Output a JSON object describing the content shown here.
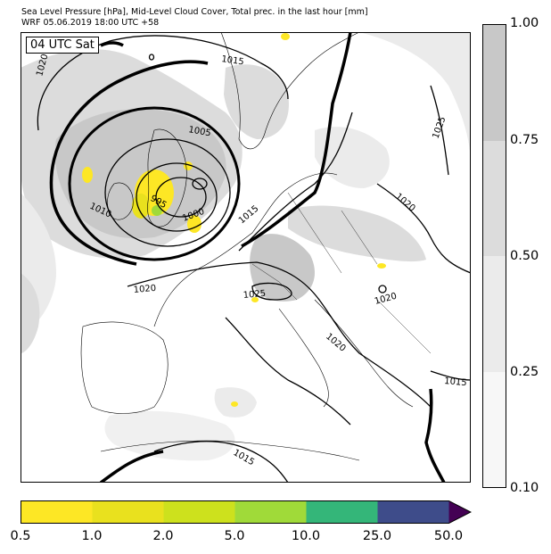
{
  "title": {
    "line1": "Sea Level Pressure [hPa], Mid-Level Cloud Cover, Total prec. in the last hour [mm]",
    "line2": "WRF 05.06.2019 18:00 UTC +58"
  },
  "map": {
    "time_label": "04 UTC Sat",
    "isobar_labels": [
      {
        "text": "1020",
        "angle": -75
      },
      {
        "text": "1015",
        "angle": 8
      },
      {
        "text": "1005",
        "angle": 10
      },
      {
        "text": "995",
        "angle": 30
      },
      {
        "text": "1000",
        "angle": -20
      },
      {
        "text": "1010",
        "angle": 25
      },
      {
        "text": "1015",
        "angle": -40
      },
      {
        "text": "1020",
        "angle": -5
      },
      {
        "text": "1025",
        "angle": -5
      },
      {
        "text": "1025",
        "angle": -70
      },
      {
        "text": "1020",
        "angle": 40
      },
      {
        "text": "1020",
        "angle": -15
      },
      {
        "text": "1020",
        "angle": 40
      },
      {
        "text": "1015",
        "angle": 5
      },
      {
        "text": "1015",
        "angle": 30
      }
    ]
  },
  "cloud_colorbar": {
    "ticks": [
      "1.00",
      "0.75",
      "0.50",
      "0.25",
      "0.10"
    ],
    "colors": [
      "#c8c8c8",
      "#dcdcdc",
      "#ebebeb",
      "#f7f7f7"
    ]
  },
  "precip_colorbar": {
    "ticks": [
      "0.5",
      "1.0",
      "2.0",
      "5.0",
      "10.0",
      "25.0",
      "50.0"
    ],
    "colors": [
      "#fde725",
      "#e9e11e",
      "#cde11d",
      "#a0da39",
      "#34b679",
      "#3e4c8a",
      "#440154"
    ]
  }
}
